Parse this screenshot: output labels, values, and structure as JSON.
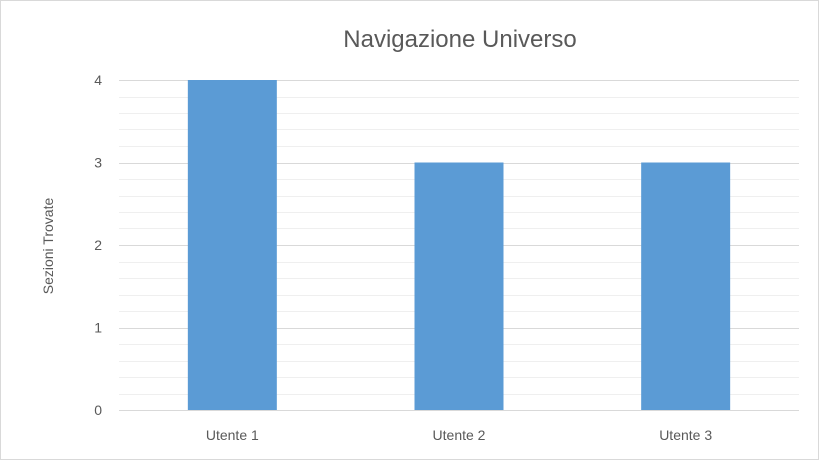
{
  "chart_data": {
    "type": "bar",
    "title": "Navigazione Universo",
    "ylabel": "Sezioni Trovate",
    "xlabel": "",
    "categories": [
      "Utente 1",
      "Utente 2",
      "Utente 3"
    ],
    "values": [
      4,
      3,
      3
    ],
    "ylim": [
      0,
      4
    ],
    "yticks": [
      "0",
      "1",
      "2",
      "3",
      "4"
    ],
    "grid": true,
    "legend": "none",
    "bar_color": "#5b9bd5",
    "grid_color": "#d9d9d9"
  }
}
